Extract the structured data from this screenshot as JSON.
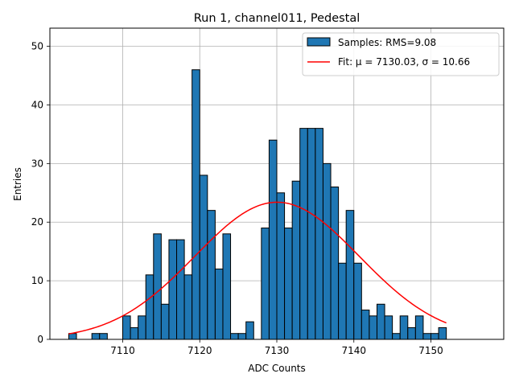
{
  "chart_data": {
    "type": "bar",
    "title": "Run 1, channel011, Pedestal",
    "xlabel": "ADC Counts",
    "ylabel": "Entries",
    "xlim": [
      7100.55,
      7159.45
    ],
    "ylim": [
      0,
      53.1
    ],
    "xticks": [
      7110,
      7120,
      7130,
      7140,
      7150
    ],
    "yticks": [
      0,
      10,
      20,
      30,
      40,
      50
    ],
    "grid": true,
    "legend_position": "top-right",
    "bin_width": 1,
    "series": [
      {
        "name": "Samples: RMS=9.08",
        "kind": "histogram",
        "bin_starts": [
          7103,
          7104,
          7105,
          7106,
          7107,
          7108,
          7109,
          7110,
          7111,
          7112,
          7113,
          7114,
          7115,
          7116,
          7117,
          7118,
          7119,
          7120,
          7121,
          7122,
          7123,
          7124,
          7125,
          7126,
          7127,
          7128,
          7129,
          7130,
          7131,
          7132,
          7133,
          7134,
          7135,
          7136,
          7137,
          7138,
          7139,
          7140,
          7141,
          7142,
          7143,
          7144,
          7145,
          7146,
          7147,
          7148,
          7149,
          7150,
          7151
        ],
        "values": [
          1,
          0,
          0,
          1,
          1,
          0,
          0,
          4,
          2,
          4,
          11,
          18,
          6,
          17,
          17,
          11,
          46,
          28,
          22,
          12,
          18,
          1,
          1,
          3,
          0,
          19,
          34,
          25,
          19,
          27,
          36,
          36,
          36,
          30,
          26,
          13,
          22,
          13,
          5,
          4,
          6,
          4,
          1,
          4,
          2,
          4,
          1,
          1,
          2
        ],
        "color": "#1f77b4"
      },
      {
        "name": "Fit: μ = 7130.03, σ = 10.66",
        "kind": "gaussian-fit",
        "mu": 7130.03,
        "sigma": 10.66,
        "amplitude": 23.4,
        "x_range": [
          7103,
          7152
        ],
        "color": "#ff0000"
      }
    ]
  }
}
